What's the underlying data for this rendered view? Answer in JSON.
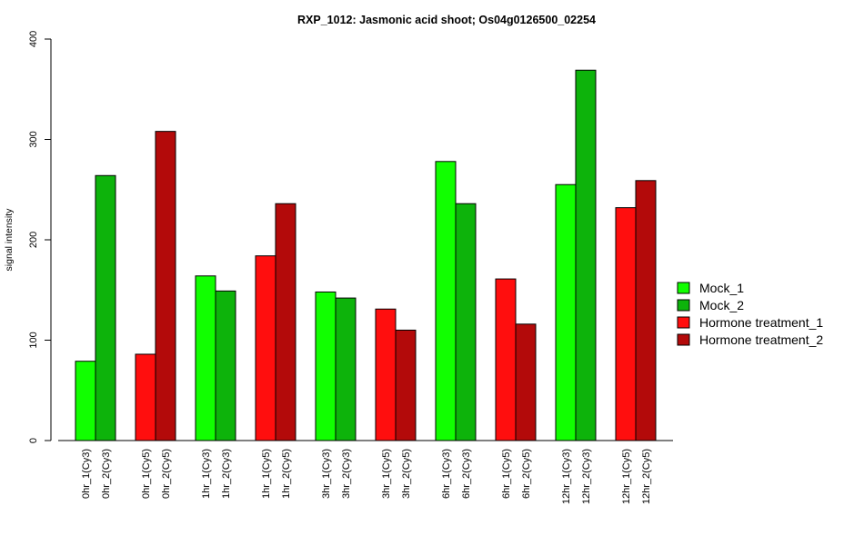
{
  "chart_data": {
    "type": "bar",
    "title": "RXP_1012: Jasmonic acid shoot; Os04g0126500_02254",
    "xlabel": "",
    "ylabel": "signal intensity",
    "ylim": [
      0,
      400
    ],
    "yticks": [
      0,
      100,
      200,
      300,
      400
    ],
    "grid": false,
    "legend_position": "right",
    "categories": [
      "0hr_1(Cy3)",
      "0hr_2(Cy3)",
      "0hr_1(Cy5)",
      "0hr_2(Cy5)",
      "1hr_1(Cy3)",
      "1hr_2(Cy3)",
      "1hr_1(Cy5)",
      "1hr_2(Cy5)",
      "3hr_1(Cy3)",
      "3hr_2(Cy3)",
      "3hr_1(Cy5)",
      "3hr_2(Cy5)",
      "6hr_1(Cy3)",
      "6hr_2(Cy3)",
      "6hr_1(Cy5)",
      "6hr_2(Cy5)",
      "12hr_1(Cy3)",
      "12hr_2(Cy3)",
      "12hr_1(Cy5)",
      "12hr_2(Cy5)"
    ],
    "values": [
      79,
      264,
      86,
      308,
      164,
      149,
      184,
      236,
      148,
      142,
      131,
      110,
      278,
      236,
      161,
      116,
      255,
      369,
      232,
      259
    ],
    "bar_series": [
      0,
      1,
      2,
      3,
      0,
      1,
      2,
      3,
      0,
      1,
      2,
      3,
      0,
      1,
      2,
      3,
      0,
      1,
      2,
      3
    ],
    "series": [
      {
        "name": "Mock_1",
        "color": "#11ff00"
      },
      {
        "name": "Mock_2",
        "color": "#0db30b"
      },
      {
        "name": "Hormone treatment_1",
        "color": "#ff0e0e"
      },
      {
        "name": "Hormone treatment_2",
        "color": "#b30a0a"
      }
    ]
  }
}
